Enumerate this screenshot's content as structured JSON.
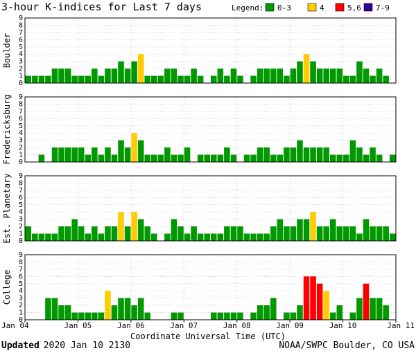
{
  "chart_data": {
    "type": "bar",
    "title": "3-hour K-indices for Last 7 days",
    "xlabel": "Coordinate Universal Time (UTC)",
    "x_ticks": [
      "Jan 04",
      "Jan 05",
      "Jan 06",
      "Jan 07",
      "Jan 08",
      "Jan 09",
      "Jan 10",
      "Jan 11"
    ],
    "ylim": [
      0,
      9
    ],
    "y_ticks": [
      "0",
      "1",
      "2",
      "3",
      "4",
      "5",
      "6",
      "7",
      "8",
      "9"
    ],
    "legend": {
      "label": "Legend:",
      "entries": [
        {
          "label": "0-3",
          "color": "#009900"
        },
        {
          "label": "4",
          "color": "#ffcc00"
        },
        {
          "label": "5,6",
          "color": "#ff0000"
        },
        {
          "label": "7-9",
          "color": "#330099"
        }
      ]
    },
    "series": [
      {
        "name": "Boulder",
        "values": [
          1,
          1,
          1,
          1,
          2,
          2,
          2,
          1,
          1,
          1,
          2,
          1,
          2,
          2,
          3,
          2,
          3,
          4,
          1,
          1,
          1,
          2,
          2,
          1,
          1,
          2,
          1,
          0,
          1,
          2,
          1,
          2,
          1,
          0,
          1,
          2,
          2,
          2,
          2,
          1,
          2,
          3,
          4,
          3,
          2,
          2,
          2,
          2,
          1,
          1,
          3,
          2,
          1,
          2,
          1,
          0
        ]
      },
      {
        "name": "Fredericksburg",
        "values": [
          0,
          0,
          1,
          0,
          2,
          2,
          2,
          2,
          2,
          1,
          2,
          1,
          2,
          1,
          3,
          2,
          4,
          3,
          1,
          1,
          1,
          2,
          1,
          1,
          2,
          0,
          1,
          1,
          1,
          1,
          2,
          1,
          0,
          1,
          1,
          2,
          2,
          1,
          1,
          2,
          2,
          3,
          2,
          2,
          2,
          2,
          1,
          1,
          1,
          3,
          2,
          1,
          2,
          1,
          0,
          1
        ]
      },
      {
        "name": "Est. Planetary",
        "values": [
          2,
          1,
          1,
          1,
          1,
          2,
          2,
          3,
          2,
          1,
          2,
          1,
          2,
          2,
          4,
          2,
          4,
          3,
          2,
          1,
          0,
          1,
          3,
          2,
          1,
          2,
          1,
          1,
          1,
          1,
          2,
          2,
          2,
          1,
          1,
          1,
          1,
          2,
          3,
          2,
          2,
          3,
          3,
          4,
          2,
          2,
          3,
          2,
          2,
          2,
          1,
          3,
          2,
          2,
          2,
          1
        ]
      },
      {
        "name": "College",
        "values": [
          0,
          0,
          0,
          3,
          3,
          2,
          2,
          1,
          1,
          1,
          1,
          1,
          4,
          2,
          3,
          3,
          2,
          3,
          1,
          0,
          0,
          0,
          1,
          1,
          0,
          0,
          0,
          0,
          1,
          1,
          1,
          1,
          1,
          0,
          1,
          2,
          2,
          3,
          0,
          1,
          1,
          2,
          6,
          6,
          5,
          4,
          1,
          2,
          0,
          1,
          3,
          5,
          3,
          3,
          2,
          0
        ]
      }
    ]
  },
  "footer": {
    "updated_label": "Updated",
    "updated_value": "2020 Jan 10 2130",
    "source": "NOAA/SWPC Boulder, CO USA"
  }
}
